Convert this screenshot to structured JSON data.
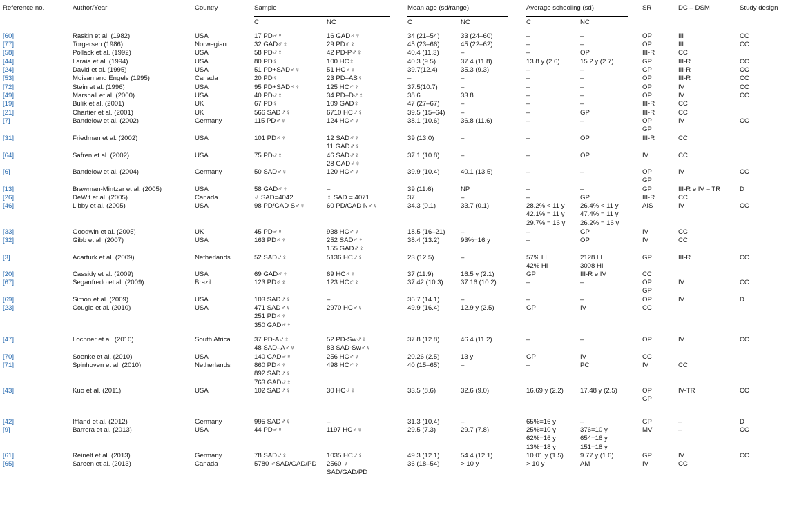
{
  "table": {
    "headers": {
      "ref": "Reference no.",
      "author": "Author/Year",
      "country": "Country",
      "sample": "Sample",
      "mean_age": "Mean age (sd/range)",
      "schooling": "Average schooling (sd)",
      "sr": "SR",
      "dc": "DC – DSM",
      "design": "Study design",
      "sub_c": "C",
      "sub_nc": "NC"
    },
    "colors": {
      "reference_link": "#2b6cb0",
      "text": "#1a1a1a",
      "rule": "#000000"
    },
    "rows": [
      {
        "ref": "[60]",
        "author": "Raskin et al. (1982)",
        "country": "USA",
        "sample_c": [
          "17 PD♂♀"
        ],
        "sample_nc": [
          "16 GAD♂♀"
        ],
        "age_c": [
          "34 (21–54)"
        ],
        "age_nc": [
          "33 (24–60)"
        ],
        "sch_c": [
          "–"
        ],
        "sch_nc": [
          "–"
        ],
        "sr": [
          "OP"
        ],
        "dc": [
          "III"
        ],
        "design": [
          "CC"
        ]
      },
      {
        "ref": "[77]",
        "author": "Torgersen (1986)",
        "country": "Norwegian",
        "sample_c": [
          "32 GAD♂♀"
        ],
        "sample_nc": [
          "29 PD♂♀"
        ],
        "age_c": [
          "45 (23–66)"
        ],
        "age_nc": [
          "45 (22–62)"
        ],
        "sch_c": [
          "–"
        ],
        "sch_nc": [
          "–"
        ],
        "sr": [
          "OP"
        ],
        "dc": [
          "III"
        ],
        "design": [
          "CC"
        ]
      },
      {
        "ref": "[58]",
        "author": "Pollack et al. (1992)",
        "country": "USA",
        "sample_c": [
          "58 PD♂♀"
        ],
        "sample_nc": [
          "42 PD-P♂♀"
        ],
        "age_c": [
          "40.4 (11.3)"
        ],
        "age_nc": [
          "–"
        ],
        "sch_c": [
          "–"
        ],
        "sch_nc": [
          "OP"
        ],
        "sr": [
          "III-R"
        ],
        "dc": [
          "CC"
        ],
        "design": []
      },
      {
        "ref": "[44]",
        "author": "Laraia et al. (1994)",
        "country": "USA",
        "sample_c": [
          "80 PD♀"
        ],
        "sample_nc": [
          "100 HC♀"
        ],
        "age_c": [
          "40.3 (9.5)"
        ],
        "age_nc": [
          "37.4 (11.8)"
        ],
        "sch_c": [
          "13.8 y (2.6)"
        ],
        "sch_nc": [
          "15.2 y (2.7)"
        ],
        "sr": [
          "GP"
        ],
        "dc": [
          "III-R"
        ],
        "design": [
          "CC"
        ]
      },
      {
        "ref": "[24]",
        "author": "David et al. (1995)",
        "country": "USA",
        "sample_c": [
          "51 PD+SAD♂♀"
        ],
        "sample_nc": [
          "51 HC♂♀"
        ],
        "age_c": [
          "39.7(12.4)"
        ],
        "age_nc": [
          "35.3 (9.3)"
        ],
        "sch_c": [
          "–"
        ],
        "sch_nc": [
          "–"
        ],
        "sr": [
          "GP"
        ],
        "dc": [
          "III-R"
        ],
        "design": [
          "CC"
        ]
      },
      {
        "ref": "[53]",
        "author": "Moisan and Engels (1995)",
        "country": "Canada",
        "sample_c": [
          "20 PD♀"
        ],
        "sample_nc": [
          "23 PD–AS♀"
        ],
        "age_c": [
          "–"
        ],
        "age_nc": [
          "–"
        ],
        "sch_c": [
          "–"
        ],
        "sch_nc": [
          "–"
        ],
        "sr": [
          "OP"
        ],
        "dc": [
          "III-R"
        ],
        "design": [
          "CC"
        ]
      },
      {
        "ref": "[72]",
        "author": "Stein et al. (1996)",
        "country": "USA",
        "sample_c": [
          "95 PD+SAD♂♀"
        ],
        "sample_nc": [
          "125 HC♂♀"
        ],
        "age_c": [
          "37.5(10.7)"
        ],
        "age_nc": [
          "–"
        ],
        "sch_c": [
          "–"
        ],
        "sch_nc": [
          "–"
        ],
        "sr": [
          "OP"
        ],
        "dc": [
          "IV"
        ],
        "design": [
          "CC"
        ]
      },
      {
        "ref": "[49]",
        "author": "Marshall et al. (2000)",
        "country": "USA",
        "sample_c": [
          "40 PD♂♀"
        ],
        "sample_nc": [
          "34 PD–D♂♀"
        ],
        "age_c": [
          "38.6"
        ],
        "age_nc": [
          "33.8"
        ],
        "sch_c": [
          "–"
        ],
        "sch_nc": [
          "–"
        ],
        "sr": [
          "OP"
        ],
        "dc": [
          "IV"
        ],
        "design": [
          "CC"
        ]
      },
      {
        "ref": "[19]",
        "author": "Bulik et al. (2001)",
        "country": "UK",
        "sample_c": [
          "67 PD♀"
        ],
        "sample_nc": [
          "109 GAD♀"
        ],
        "age_c": [
          "47 (27–67)"
        ],
        "age_nc": [
          "–"
        ],
        "sch_c": [
          "–"
        ],
        "sch_nc": [
          "–"
        ],
        "sr": [
          "III-R"
        ],
        "dc": [
          "CC"
        ],
        "design": []
      },
      {
        "ref": "[21]",
        "author": "Chartier et al. (2001)",
        "country": "UK",
        "sample_c": [
          "566 SAD♂♀"
        ],
        "sample_nc": [
          "6710 HC♂♀"
        ],
        "age_c": [
          "39.5 (15–64)"
        ],
        "age_nc": [
          "–"
        ],
        "sch_c": [
          "–"
        ],
        "sch_nc": [
          "GP"
        ],
        "sr": [
          "III-R"
        ],
        "dc": [
          "CC"
        ],
        "design": []
      },
      {
        "ref": "[7]",
        "author": "Bandelow et al. (2002)",
        "country": "Germany",
        "sample_c": [
          "115 PD♂♀"
        ],
        "sample_nc": [
          "124 HC♂♀"
        ],
        "age_c": [
          "38.1 (10.6)"
        ],
        "age_nc": [
          "36.8 (11.6)"
        ],
        "sch_c": [
          "–"
        ],
        "sch_nc": [
          "–"
        ],
        "sr": [
          "OP",
          "GP"
        ],
        "dc": [
          "IV"
        ],
        "design": [
          "CC"
        ]
      },
      {
        "ref": "[31]",
        "author": "Friedman et al. (2002)",
        "country": "USA",
        "sample_c": [
          "101 PD♂♀"
        ],
        "sample_nc": [
          "12 SAD♂♀",
          "11 GAD♂♀"
        ],
        "age_c": [
          "39 (13,0)"
        ],
        "age_nc": [
          "–"
        ],
        "sch_c": [
          "–"
        ],
        "sch_nc": [
          "OP"
        ],
        "sr": [
          "III-R"
        ],
        "dc": [
          "CC"
        ],
        "design": []
      },
      {
        "ref": "[64]",
        "author": "Safren et al. (2002)",
        "country": "USA",
        "sample_c": [
          "75 PD♂♀"
        ],
        "sample_nc": [
          "46 SAD♂♀",
          "28 GAD♂♀"
        ],
        "age_c": [
          "37.1 (10.8)"
        ],
        "age_nc": [
          "–"
        ],
        "sch_c": [
          "–"
        ],
        "sch_nc": [
          "OP"
        ],
        "sr": [
          "IV"
        ],
        "dc": [
          "CC"
        ],
        "design": []
      },
      {
        "ref": "[6]",
        "author": "Bandelow et al. (2004)",
        "country": "Germany",
        "sample_c": [
          "50 SAD♂♀"
        ],
        "sample_nc": [
          "120 HC♂♀"
        ],
        "age_c": [
          "39.9 (10.4)"
        ],
        "age_nc": [
          "40.1 (13.5)"
        ],
        "sch_c": [
          "–"
        ],
        "sch_nc": [
          "–"
        ],
        "sr": [
          "OP",
          "GP"
        ],
        "dc": [
          "IV"
        ],
        "design": [
          "CC"
        ]
      },
      {
        "ref": "[13]",
        "author": "Brawman-Mintzer et al. (2005)",
        "country": "USA",
        "sample_c": [
          "58 GAD♂♀"
        ],
        "sample_nc": [
          "–"
        ],
        "age_c": [
          "39 (11.6)"
        ],
        "age_nc": [
          "NP"
        ],
        "sch_c": [
          "–"
        ],
        "sch_nc": [
          "–"
        ],
        "sr": [
          "GP"
        ],
        "dc": [
          "III-R e IV – TR"
        ],
        "design": [
          "D"
        ]
      },
      {
        "ref": "[26]",
        "author": "DeWit et al. (2005)",
        "country": "Canada",
        "sample_c": [
          "♂ SAD=4042"
        ],
        "sample_nc": [
          "♀ SAD = 4071"
        ],
        "age_c": [
          "37"
        ],
        "age_nc": [
          "–"
        ],
        "sch_c": [
          "–"
        ],
        "sch_nc": [
          "GP"
        ],
        "sr": [
          "III-R"
        ],
        "dc": [
          "CC"
        ],
        "design": []
      },
      {
        "ref": "[46]",
        "author": "Libby et al. (2005)",
        "country": "USA",
        "sample_c": [
          "98 PD/GAD S♂♀"
        ],
        "sample_nc": [
          "60 PD/GAD N♂♀"
        ],
        "age_c": [
          "34.3 (0.1)"
        ],
        "age_nc": [
          "33.7 (0.1)"
        ],
        "sch_c": [
          "28.2% < 11 y",
          "42.1% = 11 y",
          "29.7% = 16 y"
        ],
        "sch_nc": [
          "26.4% < 11 y",
          "47.4% = 11 y",
          "26.2% = 16 y"
        ],
        "sr": [
          "AIS"
        ],
        "dc": [
          "IV"
        ],
        "design": [
          "CC"
        ]
      },
      {
        "ref": "[33]",
        "author": "Goodwin et al. (2005)",
        "country": "UK",
        "sample_c": [
          "45 PD♂♀"
        ],
        "sample_nc": [
          "938 HC♂♀"
        ],
        "age_c": [
          "18.5 (16–21)"
        ],
        "age_nc": [
          "–"
        ],
        "sch_c": [
          "–"
        ],
        "sch_nc": [
          "GP"
        ],
        "sr": [
          "IV"
        ],
        "dc": [
          "CC"
        ],
        "design": []
      },
      {
        "ref": "[32]",
        "author": "Gibb et al. (2007)",
        "country": "USA",
        "sample_c": [
          "163 PD♂♀"
        ],
        "sample_nc": [
          "252 SAD♂♀",
          "155 GAD♂♀"
        ],
        "age_c": [
          "38.4 (13.2)"
        ],
        "age_nc": [
          "93%=16 y"
        ],
        "sch_c": [
          "–"
        ],
        "sch_nc": [
          "OP"
        ],
        "sr": [
          "IV"
        ],
        "dc": [
          "CC"
        ],
        "design": []
      },
      {
        "ref": "[3]",
        "author": "Acarturk et al. (2009)",
        "country": "Netherlands",
        "sample_c": [
          "52 SAD♂♀"
        ],
        "sample_nc": [
          "5136 HC♂♀"
        ],
        "age_c": [
          "23 (12.5)"
        ],
        "age_nc": [
          "–"
        ],
        "sch_c": [
          "57% LI",
          "42% HI"
        ],
        "sch_nc": [
          "2128 LI",
          "3008 HI"
        ],
        "sr": [
          "GP"
        ],
        "dc": [
          "III-R"
        ],
        "design": [
          "CC"
        ]
      },
      {
        "ref": "[20]",
        "author": "Cassidy et al. (2009)",
        "country": "USA",
        "sample_c": [
          "69 GAD♂♀"
        ],
        "sample_nc": [
          "69 HC♂♀"
        ],
        "age_c": [
          "37 (11.9)"
        ],
        "age_nc": [
          "16.5 y (2.1)"
        ],
        "sch_c": [
          "GP"
        ],
        "sch_nc": [
          "III-R e IV"
        ],
        "sr": [
          "CC"
        ],
        "dc": [],
        "design": []
      },
      {
        "ref": "[67]",
        "author": "Seganfredo et al. (2009)",
        "country": "Brazil",
        "sample_c": [
          "123 PD♂♀"
        ],
        "sample_nc": [
          "123 HC♂♀"
        ],
        "age_c": [
          "37.42 (10.3)"
        ],
        "age_nc": [
          "37.16 (10.2)"
        ],
        "sch_c": [
          "–"
        ],
        "sch_nc": [
          "–"
        ],
        "sr": [
          "OP",
          "GP"
        ],
        "dc": [
          "IV"
        ],
        "design": [
          "CC"
        ]
      },
      {
        "ref": "[69]",
        "author": "Simon et al. (2009)",
        "country": "USA",
        "sample_c": [
          "103 SAD♂♀"
        ],
        "sample_nc": [
          "–"
        ],
        "age_c": [
          "36.7 (14.1)"
        ],
        "age_nc": [
          "–"
        ],
        "sch_c": [
          "–"
        ],
        "sch_nc": [
          "–"
        ],
        "sr": [
          "OP"
        ],
        "dc": [
          "IV"
        ],
        "design": [
          "D"
        ]
      },
      {
        "ref": "[23]",
        "author": "Cougle et al. (2010)",
        "country": "USA",
        "sample_c": [
          "471 SAD♂♀",
          "251 PD♂♀",
          "350 GAD♂♀"
        ],
        "sample_nc": [
          "2970 HC♂♀"
        ],
        "age_c": [
          "49.9 (16.4)"
        ],
        "age_nc": [
          "12.9 y (2.5)"
        ],
        "sch_c": [
          "GP"
        ],
        "sch_nc": [
          "IV"
        ],
        "sr": [
          "CC"
        ],
        "dc": [],
        "design": []
      },
      {
        "ref": "[47]",
        "author": "Lochner et al. (2010)",
        "country": "South Africa",
        "sample_c": [
          "37 PD-A♂♀",
          "48 SAD–A♂♀"
        ],
        "sample_nc": [
          "52 PD-Sw♂♀",
          "83 SAD-Sw♂♀"
        ],
        "age_c": [
          "37.8 (12.8)"
        ],
        "age_nc": [
          "46.4 (11.2)"
        ],
        "sch_c": [
          "–"
        ],
        "sch_nc": [
          "–"
        ],
        "sr": [
          "OP"
        ],
        "dc": [
          "IV"
        ],
        "design": [
          "CC"
        ]
      },
      {
        "ref": "[70]",
        "author": "Soenke et al. (2010)",
        "country": "USA",
        "sample_c": [
          "140 GAD♂♀"
        ],
        "sample_nc": [
          "256 HC♂♀"
        ],
        "age_c": [
          "20.26 (2.5)"
        ],
        "age_nc": [
          "13 y"
        ],
        "sch_c": [
          "GP"
        ],
        "sch_nc": [
          "IV"
        ],
        "sr": [
          "CC"
        ],
        "dc": [],
        "design": []
      },
      {
        "ref": "[71]",
        "author": "Spinhoven et al. (2010)",
        "country": "Netherlands",
        "sample_c": [
          "860 PD♂♀",
          "892 SAD♂♀",
          "763 GAD♂♀"
        ],
        "sample_nc": [
          "498 HC♂♀"
        ],
        "age_c": [
          "40 (15–65)"
        ],
        "age_nc": [
          "–"
        ],
        "sch_c": [
          "–"
        ],
        "sch_nc": [
          "PC"
        ],
        "sr": [
          "IV"
        ],
        "dc": [
          "CC"
        ],
        "design": []
      },
      {
        "ref": "[43]",
        "author": "Kuo et al. (2011)",
        "country": "USA",
        "sample_c": [
          "102 SAD♂♀"
        ],
        "sample_nc": [
          "30 HC♂♀"
        ],
        "age_c": [
          "33.5 (8.6)"
        ],
        "age_nc": [
          "32.6 (9.0)"
        ],
        "sch_c": [
          "16.69 y (2.2)"
        ],
        "sch_nc": [
          "17.48 y (2.5)"
        ],
        "sr": [
          "OP",
          "GP"
        ],
        "dc": [
          "IV-TR"
        ],
        "design": [
          "CC"
        ]
      },
      {
        "ref": "[42]",
        "author": "Iffland et al. (2012)",
        "country": "Germany",
        "sample_c": [
          "995 SAD♂♀"
        ],
        "sample_nc": [
          "–"
        ],
        "age_c": [
          "31.3 (10.4)"
        ],
        "age_nc": [
          "–"
        ],
        "sch_c": [
          "65%=16 y"
        ],
        "sch_nc": [
          "–"
        ],
        "sr": [
          "GP"
        ],
        "dc": [
          "–"
        ],
        "design": [
          "D"
        ]
      },
      {
        "ref": "[9]",
        "author": "Barrera et al. (2013)",
        "country": "USA",
        "sample_c": [
          "44 PD♂♀"
        ],
        "sample_nc": [
          "1197 HC♂♀"
        ],
        "age_c": [
          "29.5 (7.3)"
        ],
        "age_nc": [
          "29.7 (7.8)"
        ],
        "sch_c": [
          "25%=10 y",
          "62%=16 y",
          "13%=18 y"
        ],
        "sch_nc": [
          "376=10 y",
          "654=16 y",
          "151=18 y"
        ],
        "sr": [
          "MV"
        ],
        "dc": [
          "–"
        ],
        "design": [
          "CC"
        ]
      },
      {
        "ref": "[61]",
        "author": "Reinelt et al. (2013)",
        "country": "Germany",
        "sample_c": [
          "78 SAD♂♀"
        ],
        "sample_nc": [
          "1035 HC♂♀"
        ],
        "age_c": [
          "49.3 (12.1)"
        ],
        "age_nc": [
          "54.4 (12.1)"
        ],
        "sch_c": [
          "10.01 y (1.5)"
        ],
        "sch_nc": [
          "9.77 y (1.6)"
        ],
        "sr": [
          "GP"
        ],
        "dc": [
          "IV"
        ],
        "design": [
          "CC"
        ]
      },
      {
        "ref": "[65]",
        "author": "Sareen et al. (2013)",
        "country": "Canada",
        "sample_c": [
          "5780 ♂SAD/GAD/PD"
        ],
        "sample_nc": [
          "2560 ♀",
          "SAD/GAD/PD"
        ],
        "age_c": [
          "36 (18–54)"
        ],
        "age_nc": [
          "> 10 y"
        ],
        "sch_c": [
          "> 10 y"
        ],
        "sch_nc": [
          "AM"
        ],
        "sr": [
          "IV"
        ],
        "dc": [
          "CC"
        ],
        "design": []
      }
    ]
  }
}
